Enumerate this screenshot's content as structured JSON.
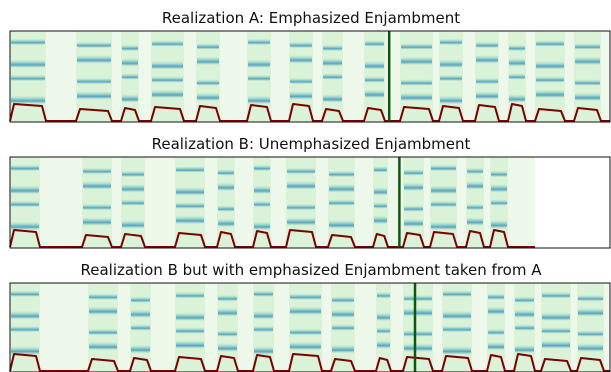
{
  "figure": {
    "panels": [
      {
        "title": "Realization A: Emphasized Enjambment",
        "marker_color": "#0b5a0b",
        "segments": [
          {
            "start": 0.0,
            "end": 0.06
          },
          {
            "start": 0.11,
            "end": 0.17
          },
          {
            "start": 0.185,
            "end": 0.215
          },
          {
            "start": 0.235,
            "end": 0.29
          },
          {
            "start": 0.31,
            "end": 0.35
          },
          {
            "start": 0.395,
            "end": 0.435
          },
          {
            "start": 0.465,
            "end": 0.505
          },
          {
            "start": 0.52,
            "end": 0.555
          },
          {
            "start": 0.59,
            "end": 0.625
          },
          {
            "start": 0.65,
            "end": 0.705
          },
          {
            "start": 0.715,
            "end": 0.755
          },
          {
            "start": 0.775,
            "end": 0.815
          },
          {
            "start": 0.83,
            "end": 0.86
          },
          {
            "start": 0.875,
            "end": 0.925
          },
          {
            "start": 0.94,
            "end": 0.985
          }
        ],
        "marker": 0.632,
        "background_extent": 1.0
      },
      {
        "title": "Realization B: Unemphasized Enjambment",
        "marker_color": "#0b5a0b",
        "segments": [
          {
            "start": 0.0,
            "end": 0.05
          },
          {
            "start": 0.12,
            "end": 0.17
          },
          {
            "start": 0.185,
            "end": 0.225
          },
          {
            "start": 0.275,
            "end": 0.325
          },
          {
            "start": 0.345,
            "end": 0.375
          },
          {
            "start": 0.405,
            "end": 0.435
          },
          {
            "start": 0.46,
            "end": 0.51
          },
          {
            "start": 0.53,
            "end": 0.575
          },
          {
            "start": 0.605,
            "end": 0.63
          },
          {
            "start": 0.655,
            "end": 0.69
          },
          {
            "start": 0.7,
            "end": 0.745
          },
          {
            "start": 0.76,
            "end": 0.79
          },
          {
            "start": 0.8,
            "end": 0.83
          }
        ],
        "marker": 0.649,
        "background_extent": 0.875
      },
      {
        "title": "Realization B but with emphasized Enjambment taken from A",
        "marker_color": "#0b5a0b",
        "segments": [
          {
            "start": 0.0,
            "end": 0.05
          },
          {
            "start": 0.13,
            "end": 0.18
          },
          {
            "start": 0.2,
            "end": 0.235
          },
          {
            "start": 0.275,
            "end": 0.325
          },
          {
            "start": 0.345,
            "end": 0.38
          },
          {
            "start": 0.405,
            "end": 0.44
          },
          {
            "start": 0.465,
            "end": 0.52
          },
          {
            "start": 0.535,
            "end": 0.575
          },
          {
            "start": 0.61,
            "end": 0.635
          },
          {
            "start": 0.655,
            "end": 0.705
          },
          {
            "start": 0.72,
            "end": 0.77
          },
          {
            "start": 0.795,
            "end": 0.825
          },
          {
            "start": 0.84,
            "end": 0.875
          },
          {
            "start": 0.885,
            "end": 0.935
          },
          {
            "start": 0.945,
            "end": 0.99
          }
        ],
        "marker": 0.675,
        "background_extent": 1.0
      }
    ]
  },
  "chart_data": [
    {
      "type": "heatmap",
      "title": "Realization A: Emphasized Enjambment",
      "xlabel": "",
      "ylabel": "",
      "grid": false
    },
    {
      "type": "heatmap",
      "title": "Realization B: Unemphasized Enjambment",
      "xlabel": "",
      "ylabel": "",
      "grid": false
    },
    {
      "type": "heatmap",
      "title": "Realization B but with emphasized Enjambment taken from A",
      "xlabel": "",
      "ylabel": "",
      "grid": false
    }
  ],
  "colors": {
    "spectrogram_background": "#eef8ea",
    "spectrogram_light": "#c9ecc9",
    "spectrogram_mid": "#7cc6c7",
    "spectrogram_dark": "#0f76b2",
    "pitch_contour": "#7a0000",
    "axis": "#111111"
  }
}
